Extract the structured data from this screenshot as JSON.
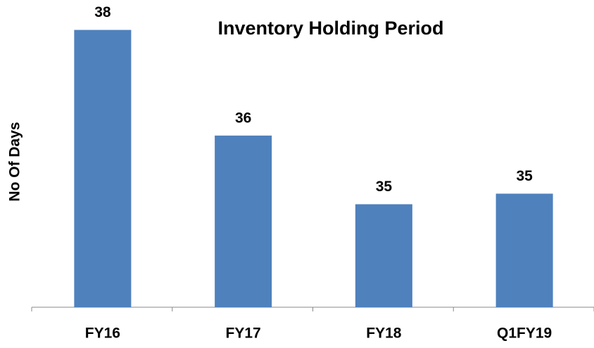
{
  "chart_data": {
    "type": "bar",
    "title": "Inventory Holding Period",
    "y_label": "No Of Days",
    "categories": [
      "FY16",
      "FY17",
      "FY18",
      "Q1FY19"
    ],
    "values": [
      38,
      36,
      34.7,
      34.9
    ],
    "value_labels": [
      "38",
      "36",
      "35",
      "35"
    ],
    "color": "#4f81bd",
    "ylim": [
      32.75,
      38.5
    ]
  }
}
